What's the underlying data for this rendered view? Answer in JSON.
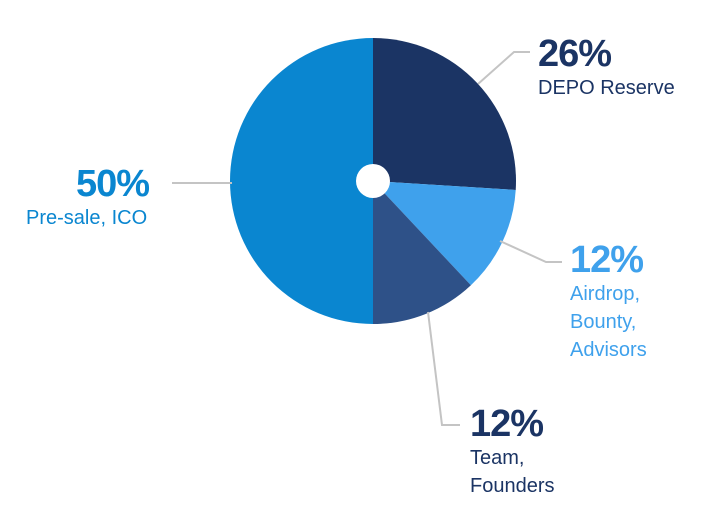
{
  "chart_data": {
    "type": "pie",
    "title": "",
    "slices": [
      {
        "value": 26,
        "label_pct": "26%",
        "label_lines": [
          "DEPO Reserve"
        ],
        "color": "#1b3464",
        "label_color_pct": "#1b3464",
        "label_color_desc": "#1b3464"
      },
      {
        "value": 12,
        "label_pct": "12%",
        "label_lines": [
          "Airdrop,",
          "Bounty,",
          "Advisors"
        ],
        "color": "#3fa1ec",
        "label_color_pct": "#3fa1ec",
        "label_color_desc": "#3fa1ec"
      },
      {
        "value": 12,
        "label_pct": "12%",
        "label_lines": [
          "Team,",
          "Founders"
        ],
        "color": "#2e5188",
        "label_color_pct": "#1b3464",
        "label_color_desc": "#1b3464"
      },
      {
        "value": 50,
        "label_pct": "50%",
        "label_lines": [
          "Pre-sale, ICO"
        ],
        "color": "#0a86d0",
        "label_color_pct": "#0a86d0",
        "label_color_desc": "#0a86d0"
      }
    ],
    "start_angle_deg": 0,
    "direction": "clockwise",
    "center_hole": true,
    "leader_line_color": "#c4c4c4"
  }
}
